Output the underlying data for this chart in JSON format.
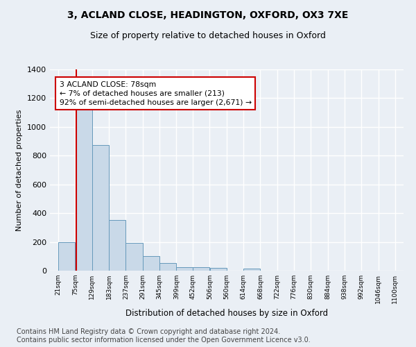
{
  "title_line1": "3, ACLAND CLOSE, HEADINGTON, OXFORD, OX3 7XE",
  "title_line2": "Size of property relative to detached houses in Oxford",
  "xlabel": "Distribution of detached houses by size in Oxford",
  "ylabel": "Number of detached properties",
  "footnote": "Contains HM Land Registry data © Crown copyright and database right 2024.\nContains public sector information licensed under the Open Government Licence v3.0.",
  "bar_edges": [
    21,
    75,
    129,
    183,
    237,
    291,
    345,
    399,
    452,
    506,
    560,
    614,
    668,
    722,
    776,
    830,
    884,
    938,
    992,
    1046,
    1100
  ],
  "bar_values": [
    197,
    1120,
    876,
    352,
    192,
    100,
    52,
    25,
    22,
    18,
    0,
    15,
    0,
    0,
    0,
    0,
    0,
    0,
    0,
    0
  ],
  "bar_color": "#c9d9e8",
  "bar_edge_color": "#6699bb",
  "property_size": 78,
  "property_line_color": "#cc0000",
  "annotation_text": "3 ACLAND CLOSE: 78sqm\n← 7% of detached houses are smaller (213)\n92% of semi-detached houses are larger (2,671) →",
  "annotation_box_color": "#ffffff",
  "annotation_box_edge_color": "#cc0000",
  "ylim": [
    0,
    1400
  ],
  "yticks": [
    0,
    200,
    400,
    600,
    800,
    1000,
    1200,
    1400
  ],
  "background_color": "#eaeff5",
  "grid_color": "#ffffff",
  "title1_fontsize": 10,
  "title2_fontsize": 9,
  "footnote_fontsize": 7
}
